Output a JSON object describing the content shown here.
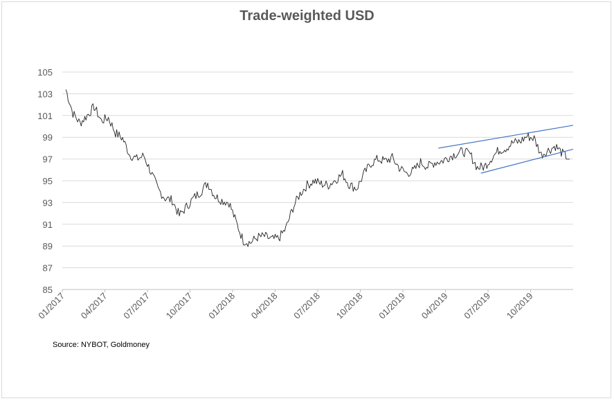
{
  "chart_data": {
    "type": "line",
    "title": "Trade-weighted USD",
    "source": "Source: NYBOT, Goldmoney",
    "ylim": [
      85,
      105
    ],
    "yticks": [
      85,
      87,
      89,
      91,
      93,
      95,
      97,
      99,
      101,
      103,
      105
    ],
    "xticks": [
      "01/2017",
      "04/2017",
      "07/2017",
      "10/2017",
      "01/2018",
      "04/2018",
      "07/2018",
      "10/2018",
      "01/2019",
      "04/2019",
      "07/2019",
      "10/2019"
    ],
    "grid": true,
    "colors": {
      "series": "#222222",
      "channel": "#4472c4",
      "grid": "#d9d9d9",
      "axis_text": "#595959"
    },
    "series": [
      {
        "points": [
          [
            "01/2017",
            103.4
          ],
          [
            "01/2017",
            101.2
          ],
          [
            "02/2017",
            100.3
          ],
          [
            "02/2017",
            101.0
          ],
          [
            "03/2017",
            101.8
          ],
          [
            "03/2017",
            100.5
          ],
          [
            "04/2017",
            100.8
          ],
          [
            "04/2017",
            99.4
          ],
          [
            "05/2017",
            98.9
          ],
          [
            "05/2017",
            97.4
          ],
          [
            "06/2017",
            97.0
          ],
          [
            "06/2017",
            97.3
          ],
          [
            "07/2017",
            95.8
          ],
          [
            "07/2017",
            94.2
          ],
          [
            "08/2017",
            93.4
          ],
          [
            "08/2017",
            93.2
          ],
          [
            "09/2017",
            91.8
          ],
          [
            "09/2017",
            92.6
          ],
          [
            "10/2017",
            93.4
          ],
          [
            "10/2017",
            94.0
          ],
          [
            "11/2017",
            94.8
          ],
          [
            "11/2017",
            93.6
          ],
          [
            "12/2017",
            93.2
          ],
          [
            "12/2017",
            93.0
          ],
          [
            "01/2018",
            91.2
          ],
          [
            "01/2018",
            89.5
          ],
          [
            "02/2018",
            89.3
          ],
          [
            "02/2018",
            89.8
          ],
          [
            "03/2018",
            89.9
          ],
          [
            "03/2018",
            89.6
          ],
          [
            "04/2018",
            89.7
          ],
          [
            "04/2018",
            90.6
          ],
          [
            "05/2018",
            92.5
          ],
          [
            "05/2018",
            93.8
          ],
          [
            "06/2018",
            94.6
          ],
          [
            "06/2018",
            95.0
          ],
          [
            "07/2018",
            94.7
          ],
          [
            "07/2018",
            94.6
          ],
          [
            "08/2018",
            95.1
          ],
          [
            "08/2018",
            95.6
          ],
          [
            "09/2018",
            94.6
          ],
          [
            "09/2018",
            94.3
          ],
          [
            "10/2018",
            95.6
          ],
          [
            "10/2018",
            96.6
          ],
          [
            "11/2018",
            97.0
          ],
          [
            "11/2018",
            96.8
          ],
          [
            "12/2018",
            97.1
          ],
          [
            "12/2018",
            96.2
          ],
          [
            "01/2019",
            95.7
          ],
          [
            "01/2019",
            95.9
          ],
          [
            "02/2019",
            96.7
          ],
          [
            "02/2019",
            96.3
          ],
          [
            "03/2019",
            96.7
          ],
          [
            "03/2019",
            96.8
          ],
          [
            "04/2019",
            97.2
          ],
          [
            "04/2019",
            97.5
          ],
          [
            "05/2019",
            97.7
          ],
          [
            "05/2019",
            97.4
          ],
          [
            "06/2019",
            96.2
          ],
          [
            "06/2019",
            96.3
          ],
          [
            "07/2019",
            97.1
          ],
          [
            "07/2019",
            97.8
          ],
          [
            "08/2019",
            98.0
          ],
          [
            "08/2019",
            98.5
          ],
          [
            "09/2019",
            98.6
          ],
          [
            "09/2019",
            99.1
          ],
          [
            "10/2019",
            98.9
          ],
          [
            "10/2019",
            97.4
          ],
          [
            "11/2019",
            97.8
          ],
          [
            "11/2019",
            98.2
          ],
          [
            "12/2019",
            97.5
          ],
          [
            "12/2019",
            97.0
          ]
        ]
      }
    ],
    "annotations": [
      {
        "type": "trendline",
        "from": [
          "03/2019",
          98.0
        ],
        "to": [
          "12/2019",
          100.1
        ]
      },
      {
        "type": "trendline",
        "from": [
          "06/2019",
          95.7
        ],
        "to": [
          "12/2019",
          97.9
        ]
      }
    ]
  }
}
